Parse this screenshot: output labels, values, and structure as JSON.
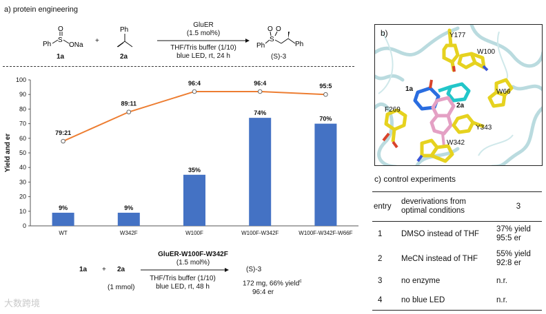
{
  "panel_a": {
    "title": "a) protein engineering",
    "reactant1_formula": "PhSO2Na",
    "reactant1_label": "1a",
    "plus": "+",
    "reactant2_label": "2a",
    "condition_enzyme": "GluER",
    "condition_loading": "(1.5 mol%)",
    "condition_solvent": "THF/Tris buffer (1/10)",
    "condition_light": "blue LED, rt, 24 h",
    "product_label": "(S)-3"
  },
  "chart_data": {
    "type": "bar",
    "ylabel": "Yield and er",
    "ylim": [
      0,
      100
    ],
    "yticks": [
      0,
      10,
      20,
      30,
      40,
      50,
      60,
      70,
      80,
      90,
      100
    ],
    "categories": [
      "WT",
      "W342F",
      "W100F",
      "W100F-W342F",
      "W100F-W342F-W66F"
    ],
    "series": [
      {
        "name": "Yield",
        "values": [
          9,
          9,
          35,
          74,
          70
        ],
        "labels": [
          "9%",
          "9%",
          "35%",
          "74%",
          "70%"
        ],
        "color": "#4472c4"
      },
      {
        "name": "er",
        "values": [
          58,
          78,
          92,
          92,
          90
        ],
        "labels": [
          "79:21",
          "89:11",
          "96:4",
          "96:4",
          "95:5"
        ],
        "color": "#ed7d31"
      }
    ]
  },
  "scale_up": {
    "reactant1_label": "1a",
    "plus": "+",
    "reactant2_label": "2a",
    "amount": "(1 mmol)",
    "enzyme": "GluER-W100F-W342F",
    "loading": "(1.5 mol%)",
    "solvent": "THF/Tris buffer (1/10)",
    "light": "blue LED, rt, 48 h",
    "product_label": "(S)-3",
    "yield_text": "172 mg, 66% yield",
    "yield_sup": "c",
    "er_text": "96:4 er"
  },
  "panel_b": {
    "title": "b)",
    "residues": [
      "Y177",
      "W100",
      "W66",
      "F269",
      "Y343",
      "W342"
    ],
    "ligand_labels": [
      "1a",
      "2a"
    ]
  },
  "panel_c": {
    "title": "c) control experiments",
    "headers": [
      "entry",
      "deverivations from optimal conditions",
      "3"
    ],
    "rows": [
      {
        "entry": "1",
        "condition": "DMSO instead of THF",
        "yield": "37% yield",
        "er": "95:5 er"
      },
      {
        "entry": "2",
        "condition": "MeCN instead of THF",
        "yield": "55% yield",
        "er": "92:8 er"
      },
      {
        "entry": "3",
        "condition": "no enzyme",
        "yield": "n.r.",
        "er": ""
      },
      {
        "entry": "4",
        "condition": "no blue LED",
        "yield": "n.r.",
        "er": ""
      }
    ]
  },
  "watermark": "大数跨境"
}
